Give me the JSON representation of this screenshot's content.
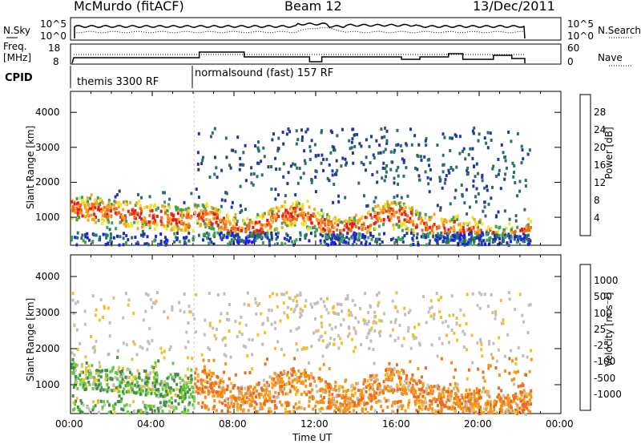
{
  "header": {
    "station": "McMurdo (fitACF)",
    "beam": "Beam 12",
    "date": "13/Dec/2011"
  },
  "top_panels": {
    "nsky_label": "N.Sky",
    "nsearch_label": "N.Search",
    "count_ticks": [
      "10^5",
      "10^0"
    ],
    "freq_label": "Freq.",
    "freq_unit": "[MHz]",
    "freq_ticks": [
      "18",
      "8"
    ],
    "nave_label": "Nave",
    "nave_ticks": [
      "60",
      "0"
    ],
    "cpid_label": "CPID",
    "cpid_segments": [
      {
        "label": "themis 3300 RF",
        "start_hr": 0.0
      },
      {
        "label": "normalsound (fast) 157 RF",
        "start_hr": 6.0
      }
    ]
  },
  "chart_data": [
    {
      "type": "heatmap",
      "name": "power",
      "ylabel": "Slant Range [km]",
      "yticks": [
        1000,
        2000,
        3000,
        4000
      ],
      "ylim": [
        200,
        4600
      ],
      "xlim": [
        0,
        24
      ],
      "colorbar": {
        "title": "Power [dB]",
        "ticks": [
          "4",
          "8",
          "12",
          "16",
          "20",
          "24",
          "28"
        ],
        "colors": [
          "#1a1aff",
          "#23389a",
          "#2a6f6a",
          "#3da05a",
          "#f2e12a",
          "#f7a51c",
          "#ef6a1b",
          "#e71b1b"
        ]
      }
    },
    {
      "type": "heatmap",
      "name": "velocity",
      "ylabel": "Slant Range [km]",
      "yticks": [
        1000,
        2000,
        3000,
        4000
      ],
      "ylim": [
        200,
        4600
      ],
      "xlim": [
        0,
        24
      ],
      "xlabel": "Time UT",
      "xticks": [
        "00:00",
        "04:00",
        "08:00",
        "12:00",
        "16:00",
        "20:00",
        "00:00"
      ],
      "colorbar": {
        "title": "Velocity [m s⁻¹]",
        "ticks": [
          "1000",
          "500",
          "100",
          "25",
          "-25",
          "-100",
          "-500",
          "-1000"
        ],
        "colors": [
          "#2a2ab8",
          "#2c6f8a",
          "#3f8f4a",
          "#66cc33",
          "#c0c0b8",
          "#f2c12a",
          "#f7931c",
          "#ef6a1b",
          "#e71b1b"
        ]
      }
    }
  ]
}
